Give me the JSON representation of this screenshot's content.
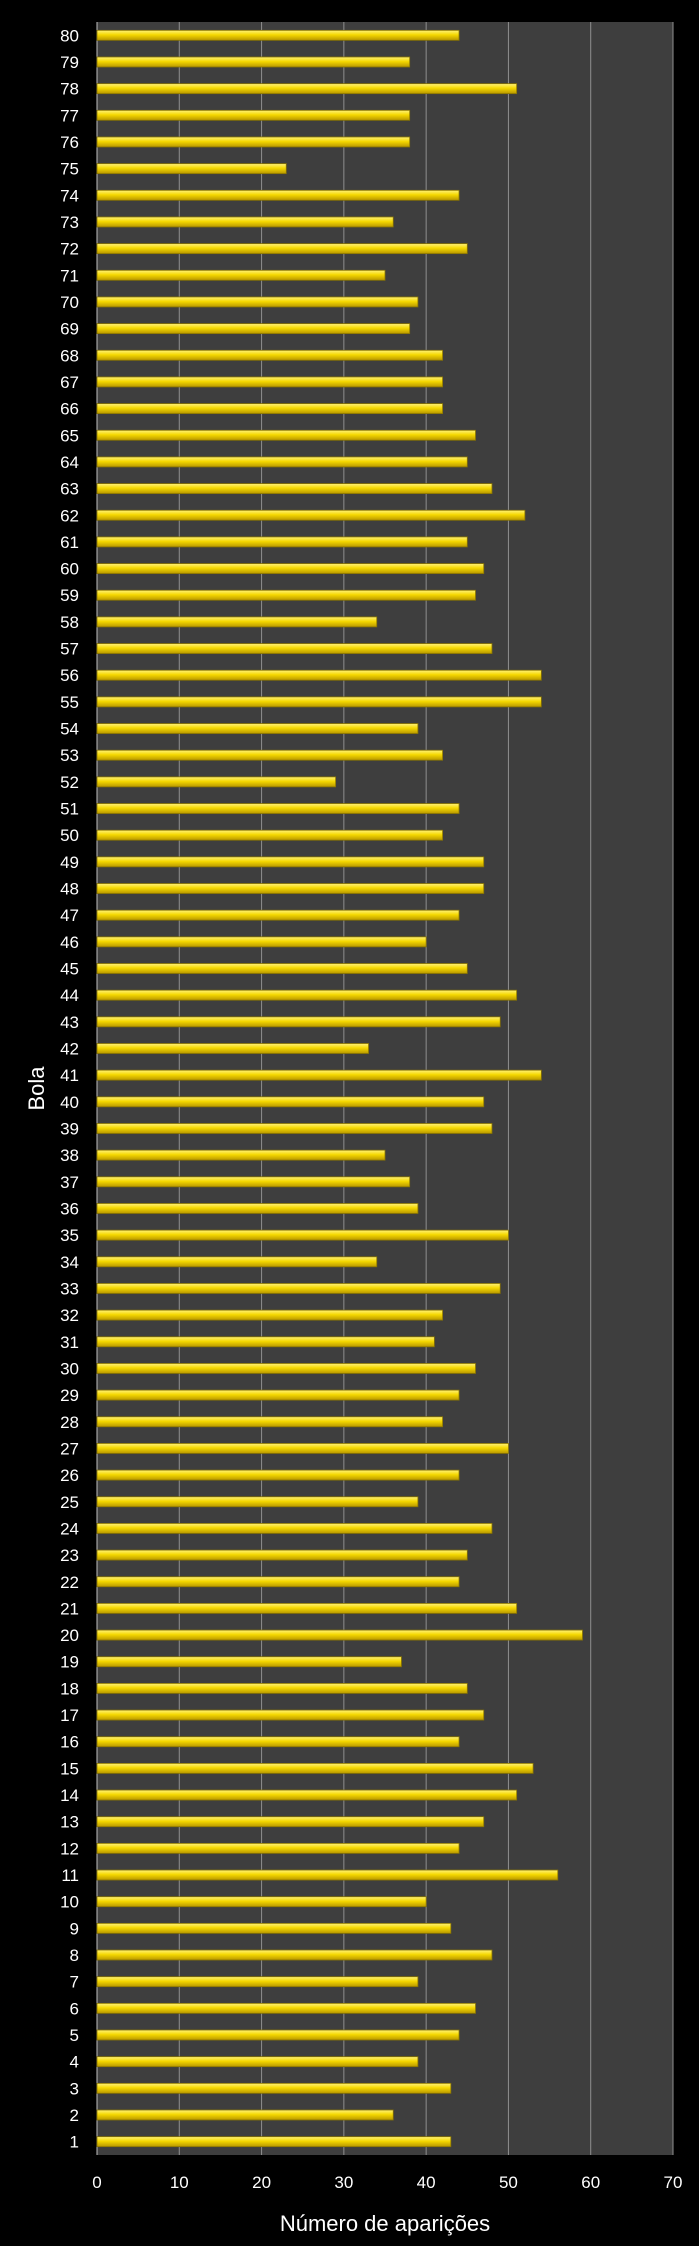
{
  "chart_data": {
    "type": "bar",
    "orientation": "horizontal",
    "xlabel": "Número de aparições",
    "ylabel": "Bola",
    "xlim": [
      0,
      70
    ],
    "xticks": [
      0,
      10,
      20,
      30,
      40,
      50,
      60,
      70
    ],
    "grid": "vertical",
    "legend": "none",
    "colors": {
      "background": "#000000",
      "plot_area": "#3e3e3e",
      "bar": "#f5d800",
      "bar_edge": "#8a7500",
      "gridline": "#8f8f8f",
      "text": "#ffffff"
    },
    "categories": [
      "1",
      "2",
      "3",
      "4",
      "5",
      "6",
      "7",
      "8",
      "9",
      "10",
      "11",
      "12",
      "13",
      "14",
      "15",
      "16",
      "17",
      "18",
      "19",
      "20",
      "21",
      "22",
      "23",
      "24",
      "25",
      "26",
      "27",
      "28",
      "29",
      "30",
      "31",
      "32",
      "33",
      "34",
      "35",
      "36",
      "37",
      "38",
      "39",
      "40",
      "41",
      "42",
      "43",
      "44",
      "45",
      "46",
      "47",
      "48",
      "49",
      "50",
      "51",
      "52",
      "53",
      "54",
      "55",
      "56",
      "57",
      "58",
      "59",
      "60",
      "61",
      "62",
      "63",
      "64",
      "65",
      "66",
      "67",
      "68",
      "69",
      "70",
      "71",
      "72",
      "73",
      "74",
      "75",
      "76",
      "77",
      "78",
      "79",
      "80"
    ],
    "values": [
      43,
      36,
      43,
      39,
      44,
      46,
      39,
      48,
      43,
      40,
      56,
      44,
      47,
      51,
      53,
      44,
      47,
      45,
      37,
      59,
      51,
      44,
      45,
      48,
      39,
      44,
      50,
      42,
      44,
      46,
      41,
      42,
      49,
      34,
      50,
      39,
      38,
      35,
      48,
      47,
      54,
      33,
      49,
      51,
      45,
      40,
      44,
      47,
      47,
      42,
      44,
      29,
      42,
      39,
      54,
      54,
      48,
      34,
      46,
      47,
      45,
      52,
      48,
      45,
      46,
      42,
      42,
      42,
      38,
      39,
      35,
      45,
      36,
      44,
      23,
      38,
      38,
      51,
      38,
      44
    ]
  }
}
